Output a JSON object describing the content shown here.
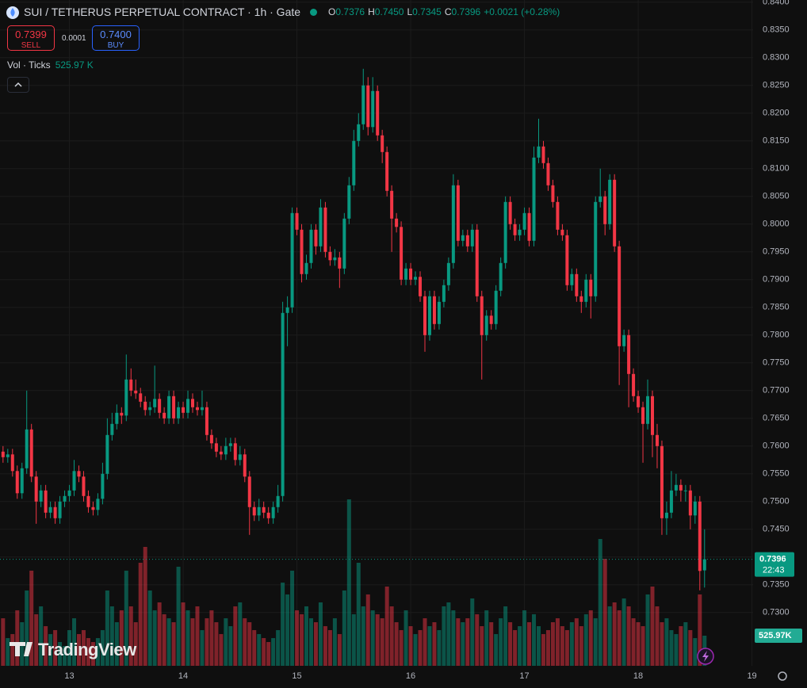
{
  "header": {
    "title": "SUI / TETHERUS PERPETUAL CONTRACT · 1h · Gate",
    "ohlc_labels": [
      "O",
      "H",
      "L",
      "C"
    ],
    "change": "+0.0021 (+0.28%)"
  },
  "trade": {
    "sell_price": 0.7399,
    "sell": "SELL",
    "spread": 0.0001,
    "buy_price": {
      "value": 0.74,
      "label": "0.7400"
    },
    "buy": "BUY"
  },
  "indicator": {
    "name": "Vol · Ticks"
  },
  "countdown": "22:43",
  "brand": "TradingView",
  "chart_data": {
    "type": "candlestick",
    "up_color": "#089981",
    "down_color": "#f23645",
    "grid": true,
    "xlim": [
      12.39,
      19.01
    ],
    "xticks": [
      13,
      14,
      15,
      16,
      17,
      18,
      19
    ],
    "ylim": [
      0.7204,
      0.8404
    ],
    "yticks": [
      {
        "value": 0.84,
        "label": "0.8400"
      },
      {
        "value": 0.835,
        "label": "0.8350"
      },
      {
        "value": 0.83,
        "label": "0.8300"
      },
      {
        "value": 0.825,
        "label": "0.8250"
      },
      {
        "value": 0.82,
        "label": "0.8200"
      },
      {
        "value": 0.815,
        "label": "0.8150"
      },
      {
        "value": 0.81,
        "label": "0.8100"
      },
      {
        "value": 0.805,
        "label": "0.8050"
      },
      {
        "value": 0.8,
        "label": "0.8000"
      },
      {
        "value": 0.795,
        "label": "0.7950"
      },
      {
        "value": 0.79,
        "label": "0.7900"
      },
      {
        "value": 0.785,
        "label": "0.7850"
      },
      {
        "value": 0.78,
        "label": "0.7800"
      },
      {
        "value": 0.775,
        "label": "0.7750"
      },
      {
        "value": 0.77,
        "label": "0.7700"
      },
      {
        "value": 0.765,
        "label": "0.7650"
      },
      {
        "value": 0.76,
        "label": "0.7600"
      },
      {
        "value": 0.755,
        "label": "0.7550"
      },
      {
        "value": 0.75,
        "label": "0.7500"
      },
      {
        "value": 0.745,
        "label": "0.7450"
      },
      {
        "value": 0.74,
        "label": "0.7400"
      },
      {
        "value": 0.735,
        "label": "0.7350"
      },
      {
        "value": 0.73,
        "label": "0.7300"
      }
    ],
    "last_labels": [
      "0.7376",
      "0.7450",
      "0.7345",
      "0.7396"
    ],
    "candles": [
      [
        0.759,
        0.76,
        0.757,
        0.758
      ],
      [
        0.758,
        0.7595,
        0.757,
        0.7585
      ],
      [
        0.7585,
        0.7595,
        0.7545,
        0.7555
      ],
      [
        0.7555,
        0.7565,
        0.7505,
        0.7515
      ],
      [
        0.7515,
        0.757,
        0.7505,
        0.756
      ],
      [
        0.756,
        0.77,
        0.755,
        0.763
      ],
      [
        0.763,
        0.764,
        0.7535,
        0.7545
      ],
      [
        0.7545,
        0.7555,
        0.746,
        0.75
      ],
      [
        0.75,
        0.753,
        0.749,
        0.752
      ],
      [
        0.752,
        0.753,
        0.747,
        0.748
      ],
      [
        0.748,
        0.75,
        0.747,
        0.749
      ],
      [
        0.749,
        0.75,
        0.746,
        0.747
      ],
      [
        0.747,
        0.751,
        0.746,
        0.75
      ],
      [
        0.75,
        0.752,
        0.749,
        0.751
      ],
      [
        0.751,
        0.753,
        0.75,
        0.752
      ],
      [
        0.752,
        0.7575,
        0.751,
        0.7555
      ],
      [
        0.7555,
        0.7565,
        0.7535,
        0.7545
      ],
      [
        0.7545,
        0.7555,
        0.75,
        0.751
      ],
      [
        0.751,
        0.752,
        0.748,
        0.749
      ],
      [
        0.749,
        0.75,
        0.7475,
        0.7485
      ],
      [
        0.7485,
        0.7515,
        0.7475,
        0.7505
      ],
      [
        0.7505,
        0.757,
        0.7495,
        0.755
      ],
      [
        0.755,
        0.765,
        0.754,
        0.762
      ],
      [
        0.762,
        0.766,
        0.761,
        0.764
      ],
      [
        0.764,
        0.7675,
        0.763,
        0.766
      ],
      [
        0.766,
        0.767,
        0.764,
        0.7655
      ],
      [
        0.7655,
        0.7765,
        0.7645,
        0.772
      ],
      [
        0.772,
        0.774,
        0.769,
        0.77
      ],
      [
        0.77,
        0.772,
        0.7685,
        0.7695
      ],
      [
        0.7695,
        0.7705,
        0.767,
        0.768
      ],
      [
        0.768,
        0.769,
        0.7655,
        0.7665
      ],
      [
        0.7665,
        0.768,
        0.7655,
        0.767
      ],
      [
        0.767,
        0.7745,
        0.766,
        0.7685
      ],
      [
        0.7685,
        0.7695,
        0.765,
        0.766
      ],
      [
        0.766,
        0.767,
        0.764,
        0.765
      ],
      [
        0.765,
        0.77,
        0.764,
        0.769
      ],
      [
        0.769,
        0.77,
        0.764,
        0.765
      ],
      [
        0.765,
        0.768,
        0.764,
        0.767
      ],
      [
        0.767,
        0.768,
        0.765,
        0.766
      ],
      [
        0.766,
        0.77,
        0.765,
        0.7685
      ],
      [
        0.7685,
        0.7695,
        0.766,
        0.767
      ],
      [
        0.767,
        0.768,
        0.7655,
        0.7665
      ],
      [
        0.7665,
        0.77,
        0.7655,
        0.767
      ],
      [
        0.767,
        0.768,
        0.761,
        0.762
      ],
      [
        0.762,
        0.763,
        0.7595,
        0.7605
      ],
      [
        0.7605,
        0.7615,
        0.758,
        0.759
      ],
      [
        0.759,
        0.76,
        0.7575,
        0.7585
      ],
      [
        0.7585,
        0.7615,
        0.7575,
        0.76
      ],
      [
        0.76,
        0.7615,
        0.759,
        0.7605
      ],
      [
        0.7605,
        0.7615,
        0.7565,
        0.7575
      ],
      [
        0.7575,
        0.76,
        0.7565,
        0.7585
      ],
      [
        0.7585,
        0.7595,
        0.7535,
        0.7545
      ],
      [
        0.7545,
        0.7555,
        0.744,
        0.749
      ],
      [
        0.749,
        0.75,
        0.7465,
        0.7475
      ],
      [
        0.7475,
        0.7505,
        0.7465,
        0.749
      ],
      [
        0.749,
        0.75,
        0.747,
        0.748
      ],
      [
        0.748,
        0.749,
        0.746,
        0.747
      ],
      [
        0.747,
        0.75,
        0.746,
        0.749
      ],
      [
        0.749,
        0.753,
        0.748,
        0.751
      ],
      [
        0.751,
        0.786,
        0.75,
        0.784
      ],
      [
        0.784,
        0.787,
        0.778,
        0.785
      ],
      [
        0.785,
        0.803,
        0.784,
        0.802
      ],
      [
        0.802,
        0.803,
        0.798,
        0.799
      ],
      [
        0.799,
        0.8,
        0.7895,
        0.791
      ],
      [
        0.791,
        0.7945,
        0.79,
        0.793
      ],
      [
        0.793,
        0.8,
        0.792,
        0.799
      ],
      [
        0.799,
        0.8,
        0.7945,
        0.796
      ],
      [
        0.796,
        0.8045,
        0.795,
        0.803
      ],
      [
        0.803,
        0.804,
        0.794,
        0.795
      ],
      [
        0.795,
        0.796,
        0.7925,
        0.7935
      ],
      [
        0.7935,
        0.7955,
        0.7925,
        0.794
      ],
      [
        0.794,
        0.795,
        0.7885,
        0.792
      ],
      [
        0.792,
        0.802,
        0.791,
        0.801
      ],
      [
        0.801,
        0.8085,
        0.8,
        0.807
      ],
      [
        0.807,
        0.817,
        0.806,
        0.815
      ],
      [
        0.815,
        0.82,
        0.814,
        0.818
      ],
      [
        0.818,
        0.828,
        0.817,
        0.825
      ],
      [
        0.825,
        0.8265,
        0.816,
        0.8175
      ],
      [
        0.8175,
        0.8265,
        0.8165,
        0.824
      ],
      [
        0.824,
        0.825,
        0.815,
        0.816
      ],
      [
        0.816,
        0.817,
        0.811,
        0.813
      ],
      [
        0.813,
        0.814,
        0.805,
        0.806
      ],
      [
        0.806,
        0.807,
        0.795,
        0.801
      ],
      [
        0.801,
        0.802,
        0.7985,
        0.7995
      ],
      [
        0.7995,
        0.8005,
        0.789,
        0.79
      ],
      [
        0.79,
        0.793,
        0.789,
        0.792
      ],
      [
        0.792,
        0.793,
        0.789,
        0.79
      ],
      [
        0.79,
        0.7915,
        0.789,
        0.7905
      ],
      [
        0.7905,
        0.7915,
        0.786,
        0.787
      ],
      [
        0.787,
        0.788,
        0.777,
        0.78
      ],
      [
        0.78,
        0.788,
        0.779,
        0.787
      ],
      [
        0.787,
        0.788,
        0.781,
        0.782
      ],
      [
        0.782,
        0.787,
        0.781,
        0.786
      ],
      [
        0.786,
        0.79,
        0.785,
        0.789
      ],
      [
        0.789,
        0.794,
        0.788,
        0.793
      ],
      [
        0.793,
        0.809,
        0.792,
        0.807
      ],
      [
        0.807,
        0.808,
        0.796,
        0.797
      ],
      [
        0.797,
        0.799,
        0.796,
        0.798
      ],
      [
        0.798,
        0.799,
        0.795,
        0.796
      ],
      [
        0.796,
        0.8,
        0.795,
        0.799
      ],
      [
        0.799,
        0.8,
        0.786,
        0.787
      ],
      [
        0.787,
        0.788,
        0.772,
        0.78
      ],
      [
        0.78,
        0.7845,
        0.779,
        0.7835
      ],
      [
        0.7835,
        0.7845,
        0.781,
        0.782
      ],
      [
        0.782,
        0.789,
        0.781,
        0.788
      ],
      [
        0.788,
        0.794,
        0.787,
        0.793
      ],
      [
        0.793,
        0.805,
        0.792,
        0.804
      ],
      [
        0.804,
        0.805,
        0.799,
        0.8
      ],
      [
        0.8,
        0.801,
        0.797,
        0.798
      ],
      [
        0.798,
        0.8,
        0.797,
        0.799
      ],
      [
        0.799,
        0.803,
        0.798,
        0.802
      ],
      [
        0.802,
        0.803,
        0.796,
        0.797
      ],
      [
        0.797,
        0.814,
        0.796,
        0.812
      ],
      [
        0.812,
        0.819,
        0.811,
        0.814
      ],
      [
        0.814,
        0.815,
        0.81,
        0.811
      ],
      [
        0.811,
        0.812,
        0.806,
        0.807
      ],
      [
        0.807,
        0.808,
        0.803,
        0.804
      ],
      [
        0.804,
        0.805,
        0.798,
        0.799
      ],
      [
        0.799,
        0.8,
        0.797,
        0.798
      ],
      [
        0.798,
        0.799,
        0.788,
        0.789
      ],
      [
        0.789,
        0.792,
        0.788,
        0.791
      ],
      [
        0.791,
        0.792,
        0.786,
        0.787
      ],
      [
        0.787,
        0.788,
        0.784,
        0.786
      ],
      [
        0.786,
        0.791,
        0.785,
        0.79
      ],
      [
        0.79,
        0.791,
        0.783,
        0.787
      ],
      [
        0.787,
        0.805,
        0.786,
        0.804
      ],
      [
        0.804,
        0.81,
        0.803,
        0.805
      ],
      [
        0.805,
        0.806,
        0.798,
        0.8
      ],
      [
        0.8,
        0.809,
        0.799,
        0.808
      ],
      [
        0.808,
        0.809,
        0.795,
        0.796
      ],
      [
        0.796,
        0.797,
        0.771,
        0.778
      ],
      [
        0.778,
        0.781,
        0.777,
        0.78
      ],
      [
        0.78,
        0.781,
        0.767,
        0.773
      ],
      [
        0.773,
        0.774,
        0.768,
        0.769
      ],
      [
        0.769,
        0.77,
        0.766,
        0.767
      ],
      [
        0.767,
        0.768,
        0.757,
        0.764
      ],
      [
        0.764,
        0.772,
        0.763,
        0.769
      ],
      [
        0.769,
        0.77,
        0.758,
        0.762
      ],
      [
        0.762,
        0.764,
        0.756,
        0.76
      ],
      [
        0.76,
        0.761,
        0.744,
        0.747
      ],
      [
        0.747,
        0.75,
        0.744,
        0.748
      ],
      [
        0.748,
        0.7555,
        0.747,
        0.752
      ],
      [
        0.752,
        0.755,
        0.751,
        0.753
      ],
      [
        0.753,
        0.754,
        0.75,
        0.752
      ],
      [
        0.752,
        0.753,
        0.75,
        0.752
      ],
      [
        0.752,
        0.753,
        0.745,
        0.7475
      ],
      [
        0.7475,
        0.751,
        0.746,
        0.75
      ],
      [
        0.75,
        0.751,
        0.734,
        0.7375
      ],
      [
        0.7376,
        0.745,
        0.7345,
        0.7396
      ]
    ],
    "volume": {
      "values": [
        830,
        484,
        554,
        969,
        761,
        1315,
        1661,
        900,
        1038,
        692,
        554,
        623,
        415,
        346,
        623,
        830,
        554,
        623,
        484,
        415,
        484,
        623,
        1315,
        1038,
        761,
        969,
        1661,
        1038,
        761,
        1799,
        2076,
        1315,
        969,
        1107,
        900,
        830,
        761,
        1730,
        1107,
        969,
        830,
        1038,
        623,
        830,
        969,
        761,
        554,
        830,
        692,
        1038,
        1107,
        830,
        761,
        623,
        554,
        484,
        415,
        484,
        623,
        1453,
        1246,
        1661,
        969,
        900,
        1038,
        830,
        761,
        1107,
        692,
        623,
        830,
        554,
        1315,
        2906,
        900,
        1799,
        1038,
        1246,
        969,
        900,
        830,
        1384,
        1038,
        761,
        623,
        969,
        692,
        554,
        623,
        830,
        692,
        761,
        623,
        1038,
        1107,
        969,
        830,
        761,
        830,
        1176,
        900,
        692,
        969,
        761,
        554,
        830,
        1038,
        761,
        623,
        692,
        969,
        761,
        900,
        692,
        554,
        623,
        761,
        830,
        692,
        623,
        761,
        830,
        692,
        900,
        969,
        830,
        2214,
        1868,
        1038,
        1107,
        969,
        1176,
        1038,
        830,
        761,
        692,
        1246,
        1384,
        1038,
        761,
        830,
        623,
        554,
        692,
        761,
        623,
        484,
        1246,
        525.97
      ],
      "legend_label": "525.97 K",
      "axis_label": "525.97K"
    }
  }
}
